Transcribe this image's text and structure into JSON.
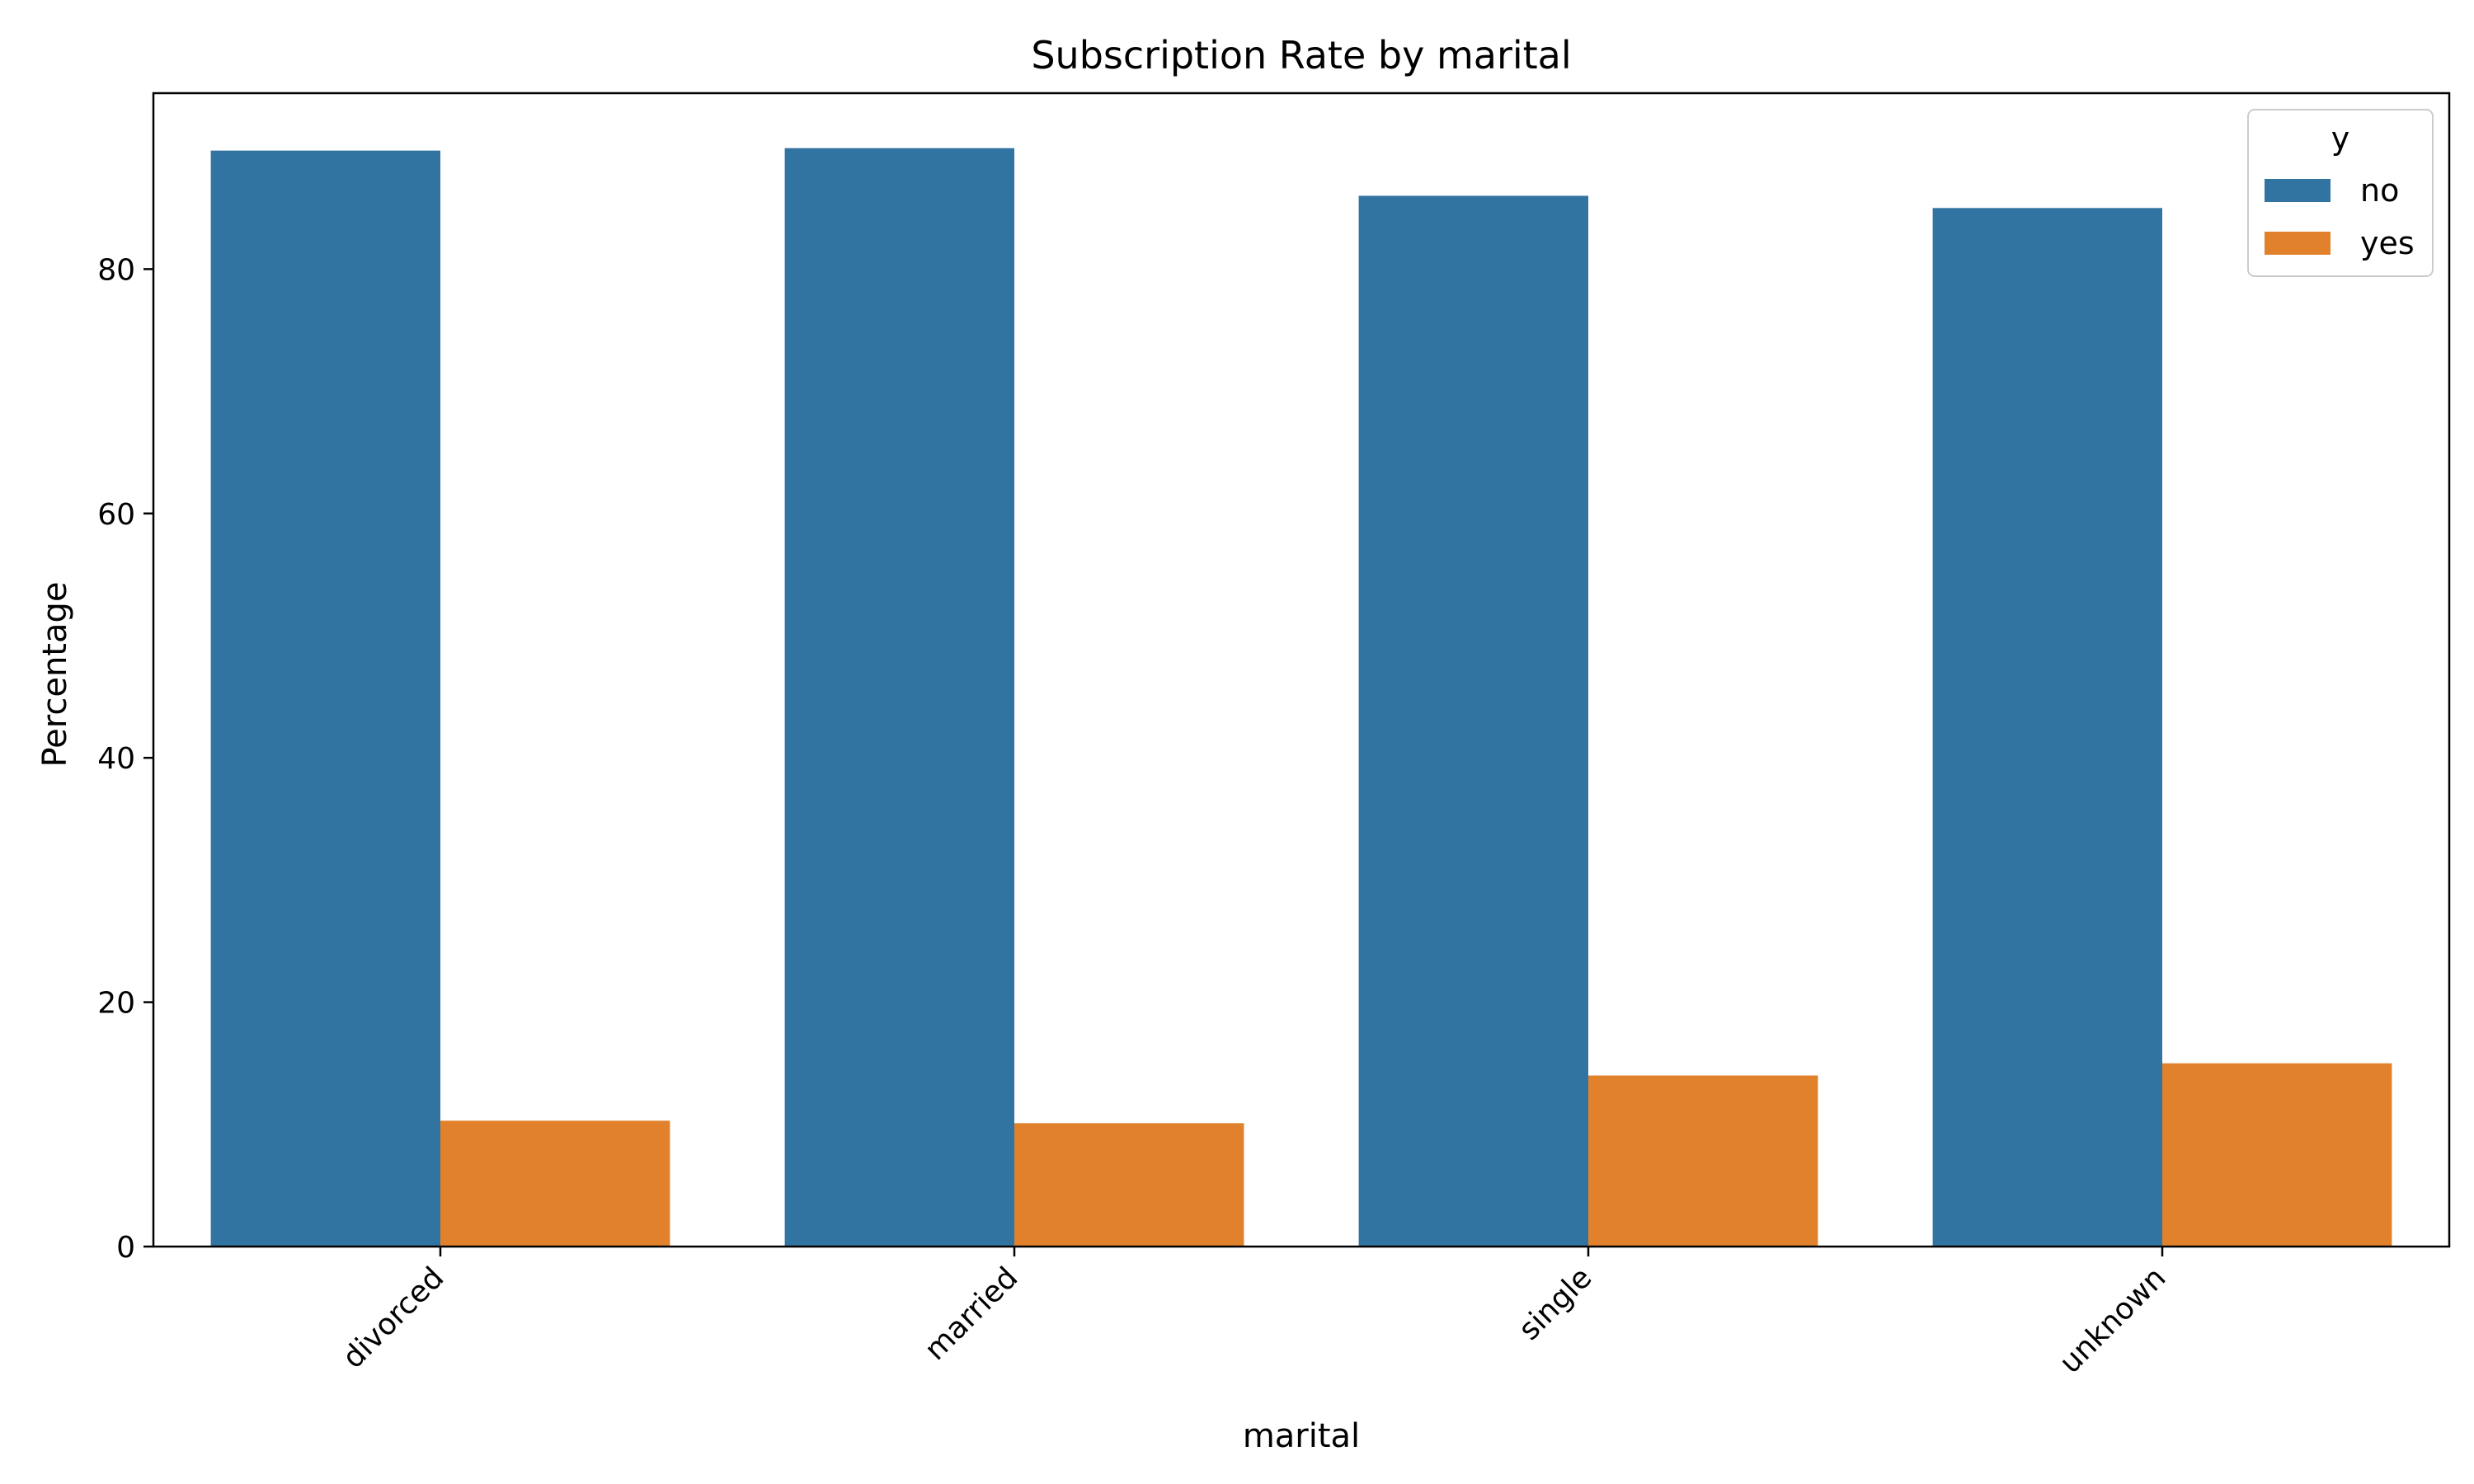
{
  "chart_data": {
    "type": "bar",
    "title": "Subscription Rate by marital",
    "xlabel": "marital",
    "ylabel": "Percentage",
    "categories": [
      "divorced",
      "married",
      "single",
      "unknown"
    ],
    "series": [
      {
        "name": "no",
        "color": "#3274a1",
        "values": [
          89.7,
          89.9,
          86.0,
          85.0
        ]
      },
      {
        "name": "yes",
        "color": "#e1812c",
        "values": [
          10.3,
          10.1,
          14.0,
          15.0
        ]
      }
    ],
    "ylim": [
      0,
      94.4
    ],
    "yticks": [
      0,
      20,
      40,
      60,
      80
    ],
    "legend": {
      "title": "y",
      "position": "top-right"
    },
    "grid": false
  }
}
